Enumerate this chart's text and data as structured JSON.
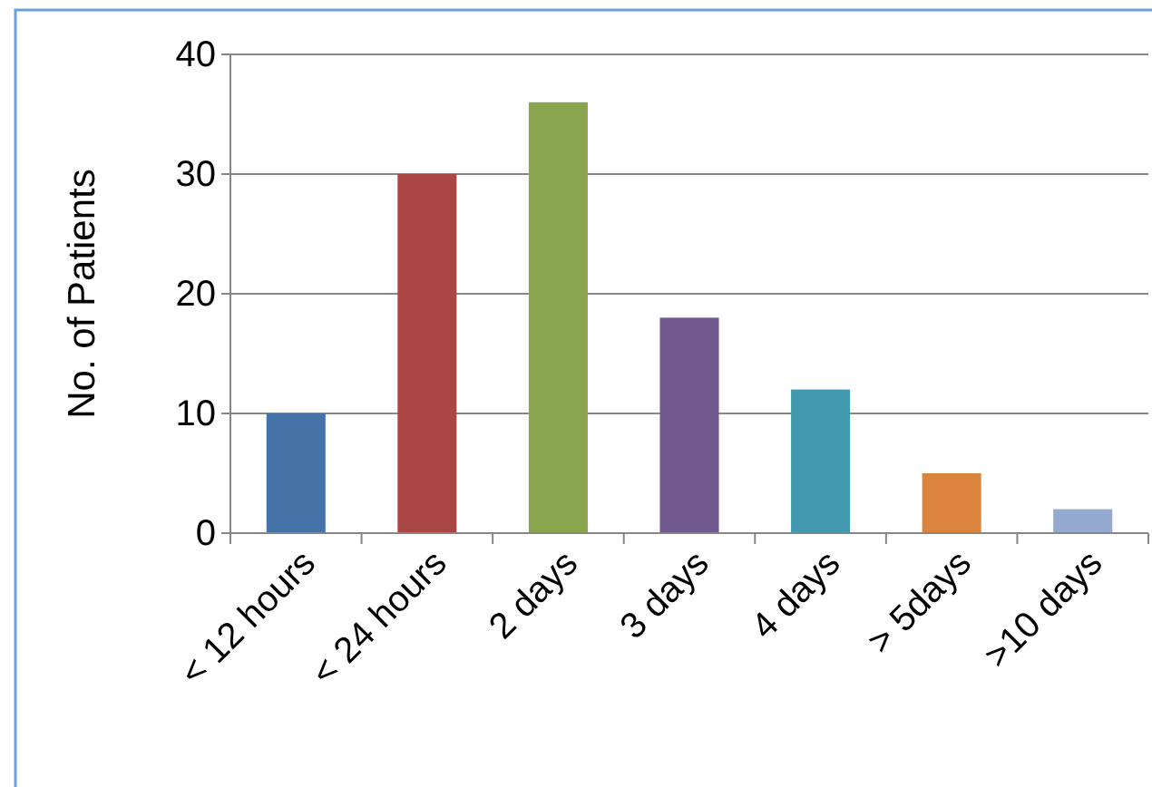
{
  "chart_data": {
    "type": "bar",
    "ylabel": "No. of Patients",
    "categories": [
      "< 12 hours",
      "< 24 hours",
      "2 days",
      "3 days",
      "4 days",
      "> 5days",
      ">10 days"
    ],
    "values": [
      10,
      30,
      36,
      18,
      12,
      5,
      2
    ],
    "colors": [
      "#4572a7",
      "#aa4643",
      "#89a54e",
      "#71588f",
      "#4198af",
      "#db843d",
      "#93a9cf"
    ],
    "ylim": [
      0,
      40
    ],
    "yticks": [
      0,
      10,
      20,
      30,
      40
    ],
    "grid": "y"
  }
}
